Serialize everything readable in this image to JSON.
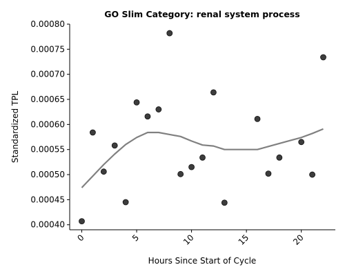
{
  "chart_data": {
    "type": "scatter",
    "title": "GO Slim Category: renal system process",
    "xlabel": "Hours Since Start of Cycle",
    "ylabel": "Standardized TPL",
    "xlim": [
      -1.1,
      23.1
    ],
    "ylim": [
      0.00039,
      0.0008
    ],
    "x_ticks": [
      0,
      5,
      10,
      15,
      20
    ],
    "y_ticks": [
      0.0004,
      0.00045,
      0.0005,
      0.00055,
      0.0006,
      0.00065,
      0.0007,
      0.00075,
      0.0008
    ],
    "y_tick_labels": [
      "0.00040",
      "0.00045",
      "0.00050",
      "0.00055",
      "0.00060",
      "0.00065",
      "0.00070",
      "0.00075",
      "0.00080"
    ],
    "grid": false,
    "point_color": "#333333",
    "trend_color": "#808080",
    "series": [
      {
        "kind": "points",
        "x": [
          0,
          1,
          2,
          3,
          4,
          5,
          6,
          7,
          8,
          9,
          10,
          11,
          12,
          13,
          16,
          17,
          18,
          20,
          21,
          22
        ],
        "y": [
          0.000407,
          0.000584,
          0.000506,
          0.000558,
          0.000445,
          0.000644,
          0.000616,
          0.00063,
          0.000782,
          0.000501,
          0.000515,
          0.000534,
          0.000664,
          0.000444,
          0.000611,
          0.000502,
          0.000534,
          0.000565,
          0.0005,
          0.000734
        ]
      },
      {
        "kind": "trend",
        "x": [
          0,
          1,
          2,
          3,
          4,
          5,
          6,
          7,
          8,
          9,
          10,
          11,
          12,
          13,
          14,
          15,
          16,
          17,
          18,
          19,
          20,
          21,
          22
        ],
        "y": [
          0.000474,
          0.000497,
          0.00052,
          0.000541,
          0.00056,
          0.000574,
          0.000584,
          0.000584,
          0.00058,
          0.000576,
          0.000567,
          0.000559,
          0.000557,
          0.00055,
          0.00055,
          0.00055,
          0.00055,
          0.000556,
          0.000562,
          0.000568,
          0.000574,
          0.000582,
          0.000591
        ]
      }
    ]
  }
}
